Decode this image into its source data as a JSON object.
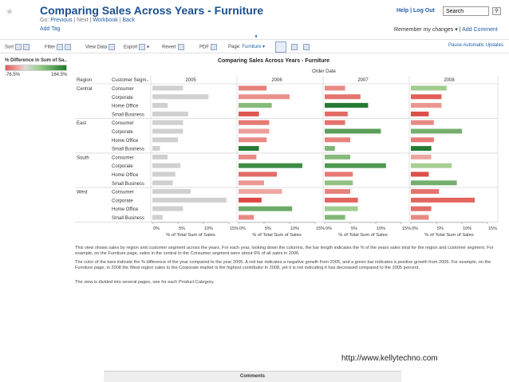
{
  "header": {
    "title": "Comparing Sales Across Years - Furniture",
    "nav_go": "Go:",
    "nav_previous": "Previous",
    "nav_next": "Next",
    "nav_workbook": "Workbook",
    "nav_back": "Back",
    "add_tag": "Add Tag",
    "help": "Help",
    "logout": "Log Out",
    "search_value": "Search",
    "remember": "Remember my changes ▾",
    "add_comment": "Add Comment"
  },
  "toolbar": {
    "sort": "Sort",
    "filter": "Filter",
    "view_data": "View Data",
    "export": "Export",
    "revert": "Revert",
    "pdf": "PDF",
    "page": "Page:",
    "page_value": "Furniture ▾",
    "pause": "Pause Automatic Updates"
  },
  "legend": {
    "title": "% Difference in Sum of Sa..",
    "min": "-76.5%",
    "max": "164.5%"
  },
  "chart_data": {
    "type": "bar",
    "title": "Comparing Sales Across Years - Furniture",
    "column_header": "Order Date",
    "row_headers": [
      "Region",
      "Customer Segm.."
    ],
    "years": [
      "2005",
      "2006",
      "2007",
      "2008"
    ],
    "xlabel": "% of Total Sum of Sales",
    "xticks": [
      "0%",
      "5%",
      "10%",
      "15%"
    ],
    "xlim": [
      0,
      15
    ],
    "color_scale": {
      "min": -76.5,
      "max": 164.5
    },
    "regions": [
      {
        "region": "Central",
        "segments": [
          {
            "segment": "Consumer",
            "values": [
              6,
              5.5,
              4,
              7
            ],
            "diff": [
              0,
              -35,
              -30,
              10
            ]
          },
          {
            "segment": "Corporate",
            "values": [
              11,
              10,
              7,
              6
            ],
            "diff": [
              0,
              -25,
              -45,
              -60
            ]
          },
          {
            "segment": "Home Office",
            "values": [
              3,
              6.5,
              8.5,
              6
            ],
            "diff": [
              0,
              40,
              150,
              -20
            ]
          },
          {
            "segment": "Small Business",
            "values": [
              7,
              4,
              4.5,
              3.5
            ],
            "diff": [
              0,
              -65,
              -50,
              -70
            ]
          }
        ]
      },
      {
        "region": "East",
        "segments": [
          {
            "segment": "Consumer",
            "values": [
              6,
              6,
              4,
              4.5
            ],
            "diff": [
              0,
              -40,
              -45,
              -30
            ]
          },
          {
            "segment": "Corporate",
            "values": [
              6,
              6,
              11,
              10
            ],
            "diff": [
              0,
              -15,
              90,
              60
            ]
          },
          {
            "segment": "Home Office",
            "values": [
              5,
              5.5,
              5,
              4.5
            ],
            "diff": [
              0,
              -30,
              -35,
              -40
            ]
          },
          {
            "segment": "Small Business",
            "values": [
              1.5,
              4,
              2,
              4
            ],
            "diff": [
              0,
              150,
              50,
              150
            ]
          }
        ]
      },
      {
        "region": "South",
        "segments": [
          {
            "segment": "Consumer",
            "values": [
              3,
              3.5,
              5,
              4
            ],
            "diff": [
              0,
              -30,
              40,
              -10
            ]
          },
          {
            "segment": "Corporate",
            "values": [
              5.5,
              12.5,
              12,
              8
            ],
            "diff": [
              0,
              120,
              100,
              5
            ]
          },
          {
            "segment": "Home Office",
            "values": [
              4.5,
              7.5,
              5.5,
              3.5
            ],
            "diff": [
              0,
              -50,
              -40,
              -70
            ]
          },
          {
            "segment": "Small Business",
            "values": [
              4,
              5,
              5.5,
              9
            ],
            "diff": [
              0,
              -20,
              30,
              60
            ]
          }
        ]
      },
      {
        "region": "West",
        "segments": [
          {
            "segment": "Consumer",
            "values": [
              7.5,
              8.5,
              5,
              5.5
            ],
            "diff": [
              0,
              -10,
              -35,
              -45
            ]
          },
          {
            "segment": "Corporate",
            "values": [
              14.5,
              4.5,
              6.5,
              12.5
            ],
            "diff": [
              0,
              -76,
              -55,
              -55
            ]
          },
          {
            "segment": "Home Office",
            "values": [
              6,
              10.5,
              6.5,
              4
            ],
            "diff": [
              0,
              70,
              10,
              -50
            ]
          },
          {
            "segment": "Small Business",
            "values": [
              2,
              3,
              4,
              3.5
            ],
            "diff": [
              0,
              -30,
              45,
              -30
            ]
          }
        ]
      }
    ]
  },
  "description": {
    "p1": "This view shows sales by region and customer segment across the years. For each year, looking down the columns, the bar length indicates the % of the years sales total for the region and customer segment.  For example, on the Furniture page, sales in the central to the Consumer segment were about 6% of all sales in 2006.",
    "p2": "The color of the bars indicate the % difference of the year compared to the year 2005.  A red bar indicates a negative growth from 2005, and a green bar indicates a positive growth from 2005. For example, on the Furniture page, in 2008 the West region sales to the Corporate market is the highest contributor in 2008, yet it is red indicating it has decreased compared to the 2005 percent.",
    "p3": "The view is divided into several pages, one for each Product Category."
  },
  "footer": {
    "url": "http://www.kellytechno.com",
    "comments": "Comments"
  }
}
